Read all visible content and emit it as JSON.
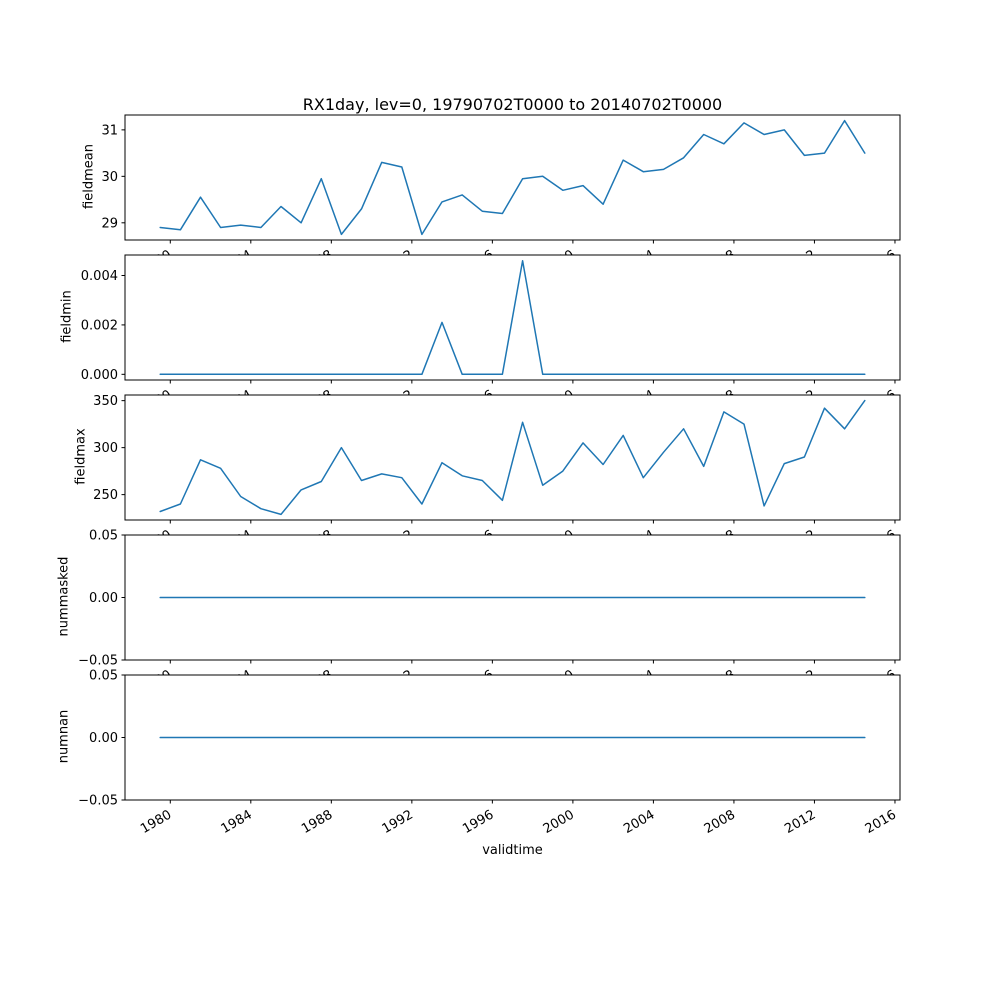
{
  "figure": {
    "title": "RX1day, lev=0, 19790702T0000 to 20140702T0000",
    "xlabel": "validtime",
    "line_color": "#1f77b4",
    "background_color": "#ffffff"
  },
  "chart_data": {
    "type": "line",
    "title": "RX1day, lev=0, 19790702T0000 to 20140702T0000",
    "xlabel": "validtime",
    "grid": false,
    "legend": "none",
    "x_range": [
      1977.75,
      2016.25
    ],
    "x_offset": 0.5,
    "x_ticks": [
      1980,
      1984,
      1988,
      1992,
      1996,
      2000,
      2004,
      2008,
      2012,
      2016
    ],
    "x_tick_labels": [
      "1980",
      "1984",
      "1988",
      "1992",
      "1996",
      "2000",
      "2004",
      "2008",
      "2012",
      "2016"
    ],
    "years": [
      1979,
      1980,
      1981,
      1982,
      1983,
      1984,
      1985,
      1986,
      1987,
      1988,
      1989,
      1990,
      1991,
      1992,
      1993,
      1994,
      1995,
      1996,
      1997,
      1998,
      1999,
      2000,
      2001,
      2002,
      2003,
      2004,
      2005,
      2006,
      2007,
      2008,
      2009,
      2010,
      2011,
      2012,
      2013,
      2014
    ],
    "subplots": [
      {
        "ylabel": "fieldmean",
        "ylim": [
          28.63,
          31.32
        ],
        "yticks": [
          29,
          30,
          31
        ],
        "ytick_labels": [
          "29",
          "30",
          "31"
        ],
        "values": [
          28.9,
          28.85,
          29.55,
          28.9,
          28.95,
          28.9,
          29.35,
          29.0,
          29.95,
          28.75,
          29.3,
          30.3,
          30.2,
          28.75,
          29.45,
          29.6,
          29.25,
          29.2,
          29.95,
          30.0,
          29.7,
          29.8,
          29.4,
          30.35,
          30.1,
          30.15,
          30.4,
          30.9,
          30.7,
          31.15,
          30.9,
          31.0,
          30.45,
          30.5,
          31.2,
          30.5
        ]
      },
      {
        "ylabel": "fieldmin",
        "ylim": [
          -0.00023,
          0.00483
        ],
        "yticks": [
          0.0,
          0.002,
          0.004
        ],
        "ytick_labels": [
          "0.000",
          "0.002",
          "0.004"
        ],
        "values": [
          0,
          0,
          0,
          0,
          0,
          0,
          0,
          0,
          0,
          0,
          0,
          0,
          0,
          0,
          0.0021,
          0,
          0,
          0,
          0.0046,
          0,
          0,
          0,
          0,
          0,
          0,
          0,
          0,
          0,
          0,
          0,
          0,
          0,
          0,
          0,
          0,
          0
        ]
      },
      {
        "ylabel": "fieldmax",
        "ylim": [
          223,
          356
        ],
        "yticks": [
          250,
          300,
          350
        ],
        "ytick_labels": [
          "250",
          "300",
          "350"
        ],
        "values": [
          232,
          240,
          287,
          278,
          248,
          235,
          229,
          255,
          264,
          300,
          265,
          272,
          268,
          240,
          284,
          270,
          265,
          244,
          327,
          260,
          275,
          305,
          282,
          313,
          268,
          295,
          320,
          280,
          338,
          325,
          238,
          283,
          290,
          342,
          320,
          350
        ]
      },
      {
        "ylabel": "nummasked",
        "ylim": [
          -0.05,
          0.05
        ],
        "yticks": [
          -0.05,
          0.0,
          0.05
        ],
        "ytick_labels": [
          "−0.05",
          "0.00",
          "0.05"
        ],
        "values": [
          0,
          0,
          0,
          0,
          0,
          0,
          0,
          0,
          0,
          0,
          0,
          0,
          0,
          0,
          0,
          0,
          0,
          0,
          0,
          0,
          0,
          0,
          0,
          0,
          0,
          0,
          0,
          0,
          0,
          0,
          0,
          0,
          0,
          0,
          0,
          0
        ]
      },
      {
        "ylabel": "numnan",
        "ylim": [
          -0.05,
          0.05
        ],
        "yticks": [
          -0.05,
          0.0,
          0.05
        ],
        "ytick_labels": [
          "−0.05",
          "0.00",
          "0.05"
        ],
        "values": [
          0,
          0,
          0,
          0,
          0,
          0,
          0,
          0,
          0,
          0,
          0,
          0,
          0,
          0,
          0,
          0,
          0,
          0,
          0,
          0,
          0,
          0,
          0,
          0,
          0,
          0,
          0,
          0,
          0,
          0,
          0,
          0,
          0,
          0,
          0,
          0
        ]
      }
    ]
  }
}
